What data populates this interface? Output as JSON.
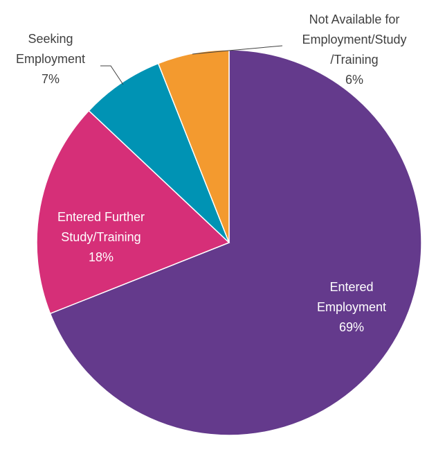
{
  "chart_data": {
    "type": "pie",
    "title": "",
    "start_angle_deg": 0,
    "direction": "clockwise",
    "slices": [
      {
        "label_lines": [
          "Entered",
          "Employment"
        ],
        "value": 69,
        "display_value": "69%",
        "color": "#643a8c"
      },
      {
        "label_lines": [
          "Entered Further",
          "Study/Training"
        ],
        "value": 18,
        "display_value": "18%",
        "color": "#d62f78"
      },
      {
        "label_lines": [
          "Seeking",
          "Employment"
        ],
        "value": 7,
        "display_value": "7%",
        "color": "#0093b4"
      },
      {
        "label_lines": [
          "Not Available for",
          "Employment/Study",
          "/Training"
        ],
        "value": 6,
        "display_value": "6%",
        "color": "#f39a2f"
      }
    ]
  }
}
